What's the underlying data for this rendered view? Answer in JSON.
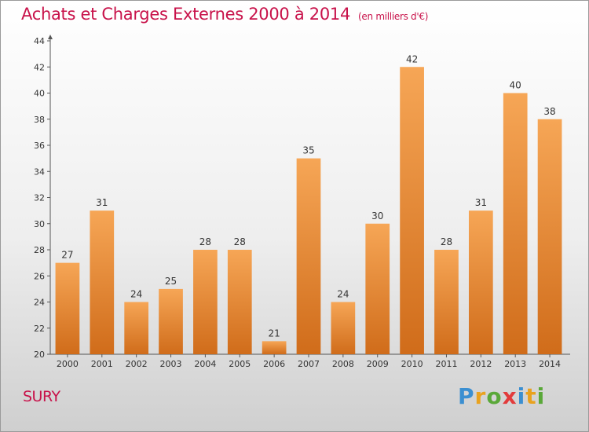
{
  "chart_data": {
    "type": "bar",
    "title": "Achats et Charges Externes 2000 à 2014",
    "subtitle": "(en milliers d'€)",
    "categories": [
      "2000",
      "2001",
      "2002",
      "2003",
      "2004",
      "2005",
      "2006",
      "2007",
      "2008",
      "2009",
      "2010",
      "2011",
      "2012",
      "2013",
      "2014"
    ],
    "values": [
      27,
      31,
      24,
      25,
      28,
      28,
      21,
      35,
      24,
      30,
      42,
      28,
      31,
      40,
      38
    ],
    "ylim": [
      20,
      44
    ],
    "yticks": [
      20,
      22,
      24,
      26,
      28,
      30,
      32,
      34,
      36,
      38,
      40,
      42,
      44
    ],
    "grid": false,
    "bar_color": "#e8822a"
  },
  "footer": {
    "commune": "SURY",
    "brand": "Proxiti"
  },
  "colors": {
    "title": "#c8124a",
    "brand_letters": [
      "#3b8fd1",
      "#e9a21f",
      "#5aa839",
      "#e23b3b",
      "#3b8fd1",
      "#e9a21f",
      "#5aa839"
    ]
  }
}
